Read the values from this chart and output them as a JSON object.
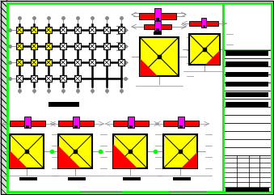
{
  "bg_color": "#ffffff",
  "green": "#00ff00",
  "yellow": "#ffff00",
  "red": "#ff0000",
  "magenta": "#ff00ff",
  "gray": "#888888",
  "black": "#000000",
  "figsize": [
    3.39,
    2.41
  ],
  "dpi": 100
}
